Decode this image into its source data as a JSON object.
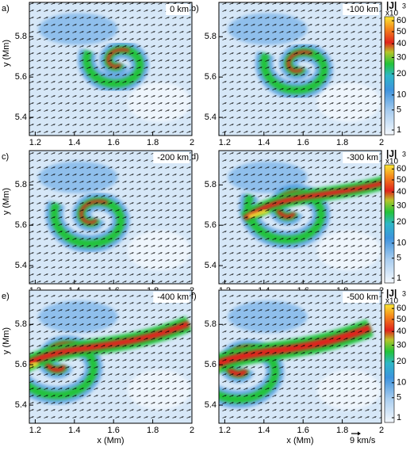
{
  "chart_data": [
    {
      "type": "heatmap",
      "title": "a)",
      "annotation": "0 km",
      "ylabel": "y (Mm)",
      "xlim": [
        1.17,
        2.0
      ],
      "ylim": [
        5.31,
        5.97
      ],
      "xticks": [
        1.2,
        1.4,
        1.6,
        1.8,
        2
      ],
      "yticks": [
        5.4,
        5.6,
        5.8
      ]
    },
    {
      "type": "heatmap",
      "title": "b)",
      "annotation": "-100 km",
      "xlim": [
        1.17,
        2.0
      ],
      "ylim": [
        5.31,
        5.97
      ],
      "xticks": [
        1.2,
        1.4,
        1.6,
        1.8,
        2
      ],
      "yticks": [
        5.4,
        5.6,
        5.8
      ]
    },
    {
      "type": "heatmap",
      "title": "c)",
      "annotation": "-200 km",
      "ylabel": "y (Mm)",
      "xlim": [
        1.17,
        2.0
      ],
      "ylim": [
        5.31,
        5.97
      ],
      "xticks": [
        1.2,
        1.4,
        1.6,
        1.8,
        2
      ],
      "yticks": [
        5.4,
        5.6,
        5.8
      ]
    },
    {
      "type": "heatmap",
      "title": "d)",
      "annotation": "-300 km",
      "xlim": [
        1.17,
        2.0
      ],
      "ylim": [
        5.31,
        5.97
      ],
      "xticks": [
        1.2,
        1.4,
        1.6,
        1.8,
        2
      ],
      "yticks": [
        5.4,
        5.6,
        5.8
      ]
    },
    {
      "type": "heatmap",
      "title": "e)",
      "annotation": "-400 km",
      "xlabel": "x (Mm)",
      "ylabel": "y (Mm)",
      "xlim": [
        1.17,
        2.0
      ],
      "ylim": [
        5.31,
        5.97
      ],
      "xticks": [
        1.2,
        1.4,
        1.6,
        1.8,
        2
      ],
      "yticks": [
        5.4,
        5.6,
        5.8
      ]
    },
    {
      "type": "heatmap",
      "title": "f)",
      "annotation": "-500 km",
      "xlabel": "x (Mm)",
      "xlim": [
        1.17,
        2.0
      ],
      "ylim": [
        5.31,
        5.97
      ],
      "xticks": [
        1.2,
        1.4,
        1.6,
        1.8,
        2
      ],
      "yticks": [
        5.4,
        5.6,
        5.8
      ]
    }
  ],
  "colorbar": {
    "label": "|J|",
    "factor": "x10",
    "exponent": "3",
    "zlim": [
      0.5,
      64
    ],
    "scale": "sqrt",
    "ticks": [
      1,
      5,
      10,
      20,
      30,
      40,
      50,
      60
    ]
  },
  "arrow_scale": "9 km/s"
}
